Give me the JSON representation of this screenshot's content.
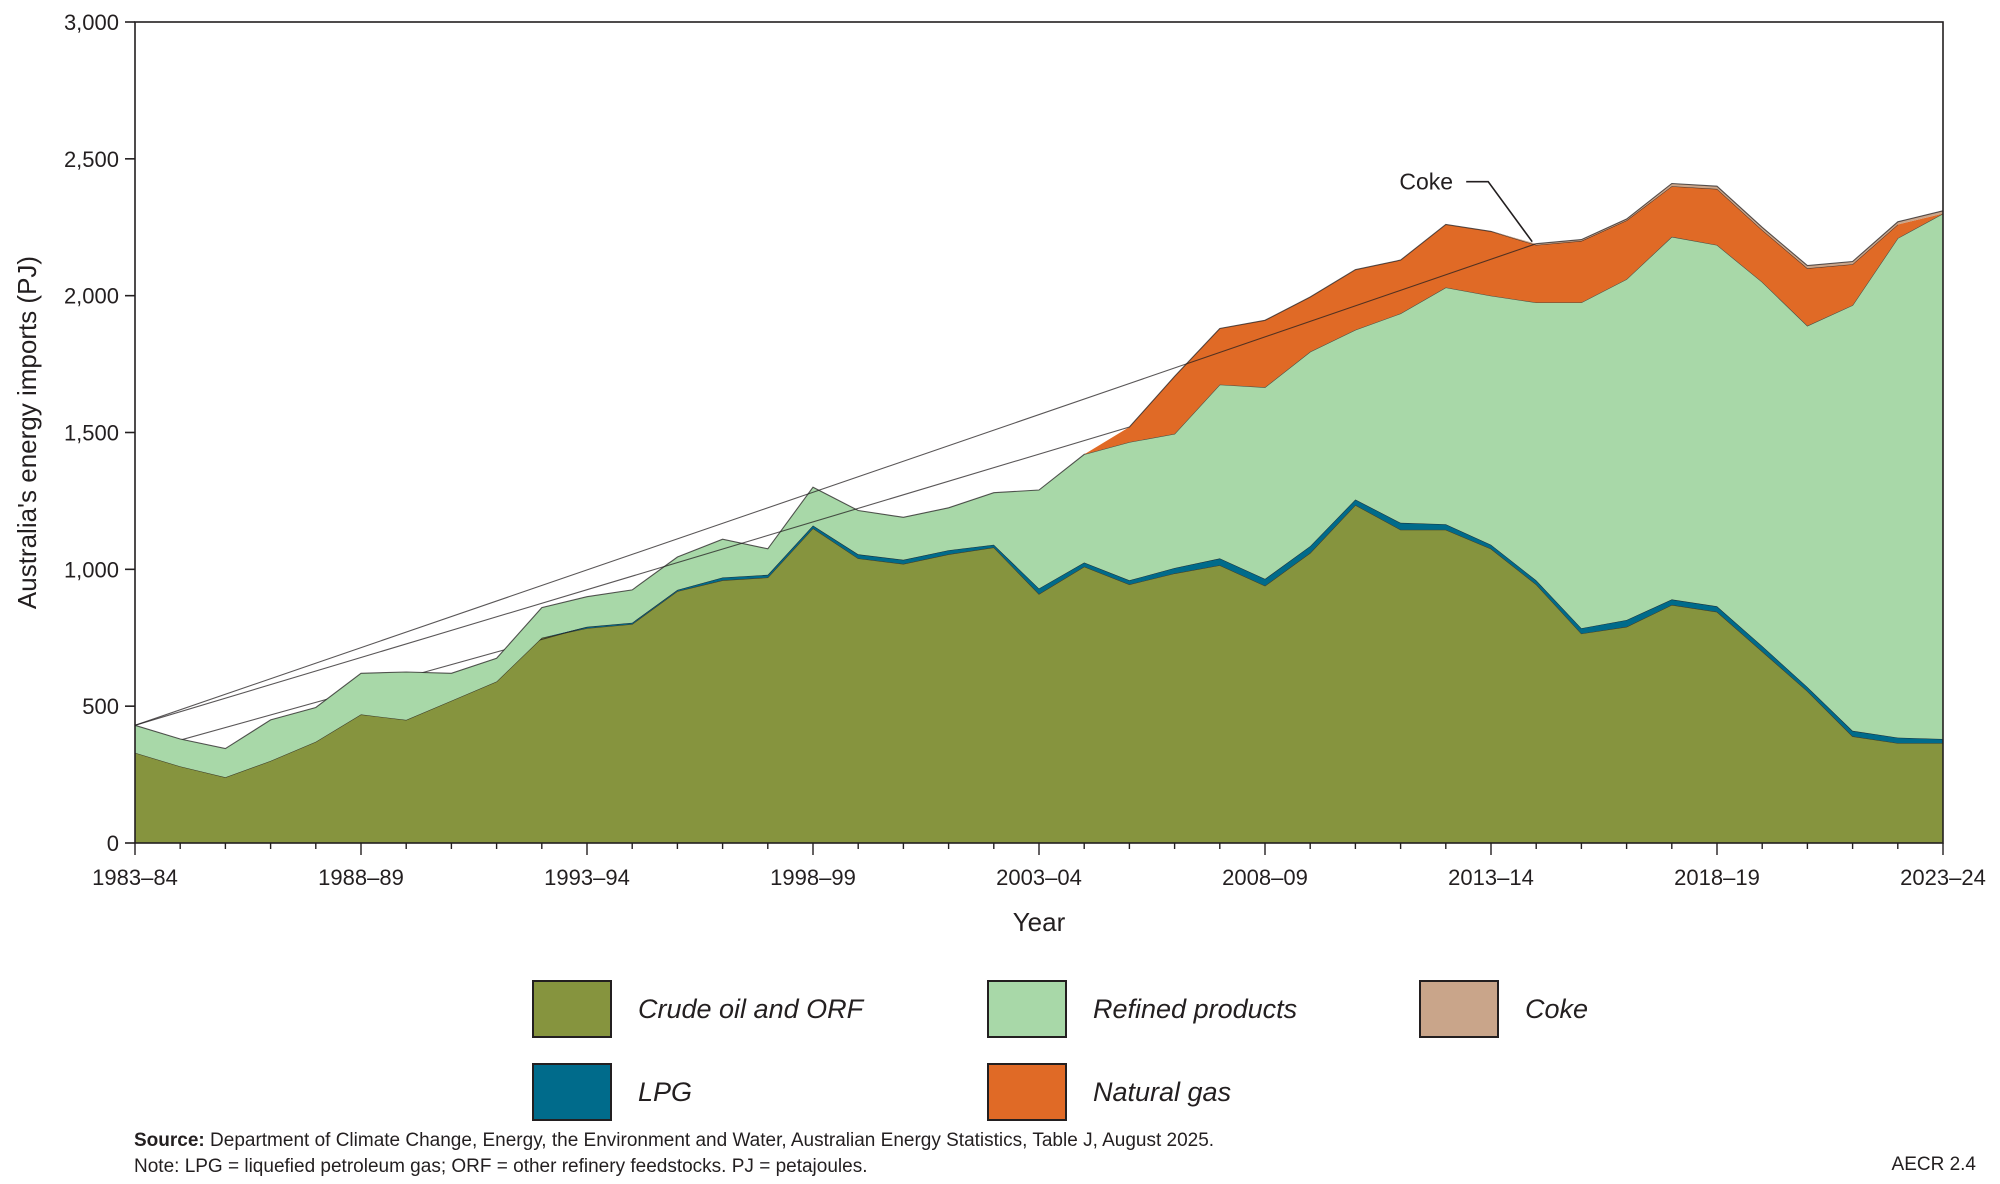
{
  "chart_data": {
    "type": "area",
    "stacked": true,
    "xlabel": "Year",
    "ylabel": "Australia's energy imports (PJ)",
    "ylim": [
      0,
      3000
    ],
    "yticks": [
      0,
      500,
      1000,
      1500,
      2000,
      2500,
      3000
    ],
    "ytick_labels": [
      "0",
      "500",
      "1,000",
      "1,500",
      "2,000",
      "2,500",
      "3,000"
    ],
    "xtick_labels": [
      "1983–84",
      "1988–89",
      "1993–94",
      "1998–99",
      "2003–04",
      "2008–09",
      "2013–14",
      "2018–19",
      "2023–24"
    ],
    "x": [
      "1983–84",
      "1984–85",
      "1985–86",
      "1986–87",
      "1987–88",
      "1988–89",
      "1989–90",
      "1990–91",
      "1991–92",
      "1992–93",
      "1993–94",
      "1994–95",
      "1995–96",
      "1996–97",
      "1997–98",
      "1998–99",
      "1999–00",
      "2000–01",
      "2001–02",
      "2002–03",
      "2003–04",
      "2004–05",
      "2005–06",
      "2006–07",
      "2007–08",
      "2008–09",
      "2009–10",
      "2010–11",
      "2011–12",
      "2012–13",
      "2013–14",
      "2014–15",
      "2015–16",
      "2016–17",
      "2017–18",
      "2018–19",
      "2019–20",
      "2020–21",
      "2021–22",
      "2022–23",
      "2023–24"
    ],
    "series": [
      {
        "name": "Crude oil and ORF",
        "color": "#86943e",
        "values": [
          330,
          280,
          240,
          300,
          370,
          470,
          450,
          520,
          590,
          750,
          785,
          800,
          920,
          960,
          970,
          1150,
          1040,
          1020,
          1055,
          1080,
          910,
          1010,
          945,
          985,
          1015,
          940,
          1060,
          1235,
          1145,
          1145,
          1075,
          945,
          765,
          790,
          870,
          845,
          700,
          555,
          390,
          365,
          365
        ]
      },
      {
        "name": "LPG",
        "color": "#006b8b",
        "values": [
          0,
          0,
          0,
          0,
          0,
          0,
          0,
          0,
          0,
          0,
          5,
          5,
          5,
          10,
          10,
          10,
          15,
          15,
          15,
          10,
          20,
          15,
          15,
          20,
          25,
          25,
          25,
          20,
          25,
          20,
          15,
          15,
          20,
          25,
          20,
          20,
          20,
          15,
          20,
          20,
          15
        ]
      },
      {
        "name": "Refined products",
        "color": "#a8d8a8",
        "values": [
          100,
          100,
          105,
          150,
          125,
          150,
          175,
          100,
          85,
          110,
          110,
          120,
          120,
          140,
          95,
          140,
          160,
          155,
          155,
          190,
          360,
          395,
          505,
          490,
          635,
          700,
          710,
          620,
          765,
          865,
          910,
          1015,
          1190,
          1245,
          1325,
          1320,
          1330,
          1320,
          1555,
          1825,
          1920
        ]
      },
      {
        "name": "Natural gas",
        "color": "#e06a26",
        "values": [
          0,
          0,
          0,
          0,
          0,
          0,
          0,
          0,
          0,
          0,
          0,
          0,
          0,
          0,
          0,
          0,
          0,
          0,
          0,
          0,
          0,
          0,
          55,
          210,
          205,
          245,
          200,
          220,
          195,
          230,
          235,
          210,
          225,
          215,
          185,
          205,
          190,
          210,
          150,
          50,
          0
        ]
      },
      {
        "name": "Coke",
        "color": "#c9a58a",
        "values": [
          0,
          0,
          0,
          0,
          0,
          0,
          0,
          0,
          0,
          0,
          0,
          0,
          0,
          0,
          0,
          0,
          0,
          0,
          0,
          0,
          0,
          0,
          0,
          0,
          0,
          0,
          0,
          0,
          0,
          0,
          0,
          5,
          5,
          5,
          10,
          10,
          10,
          10,
          10,
          10,
          10
        ]
      }
    ],
    "annotations": [
      {
        "text": "Coke",
        "x": "2014–15",
        "y": 2190
      }
    ],
    "legend_position": "bottom",
    "legend_labels": [
      "Crude oil and ORF",
      "Refined products",
      "Coke",
      "LPG",
      "Natural gas"
    ]
  },
  "footer": {
    "source_label": "Source:",
    "source_text": " Department of Climate Change, Energy, the Environment and Water, Australian Energy Statistics, Table J, August 2025.",
    "note": "Note: LPG = liquefied petroleum gas; ORF = other refinery feedstocks. PJ = petajoules.",
    "ref": "AECR 2.4"
  }
}
